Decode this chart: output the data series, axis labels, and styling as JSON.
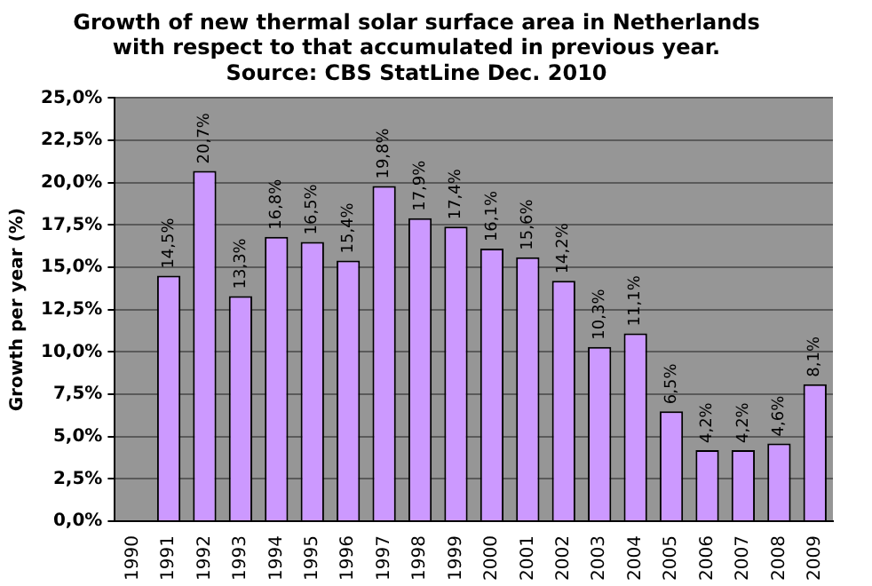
{
  "chart_data": {
    "type": "bar",
    "title": [
      "Growth of new thermal solar surface area in Netherlands",
      "with respect to that accumulated in previous year.",
      "Source: CBS StatLine Dec. 2010"
    ],
    "ylabel": "Growth per year (%)",
    "categories": [
      "1990",
      "1991",
      "1992",
      "1993",
      "1994",
      "1995",
      "1996",
      "1997",
      "1998",
      "1999",
      "2000",
      "2001",
      "2002",
      "2003",
      "2004",
      "2005",
      "2006",
      "2007",
      "2008",
      "2009"
    ],
    "values": [
      null,
      14.5,
      20.7,
      13.3,
      16.8,
      16.5,
      15.4,
      19.8,
      17.9,
      17.4,
      16.1,
      15.6,
      14.2,
      10.3,
      11.1,
      6.5,
      4.2,
      4.2,
      4.6,
      8.1
    ],
    "value_labels": [
      null,
      "14,5%",
      "20,7%",
      "13,3%",
      "16,8%",
      "16,5%",
      "15,4%",
      "19,8%",
      "17,9%",
      "17,4%",
      "16,1%",
      "15,6%",
      "14,2%",
      "10,3%",
      "11,1%",
      "6,5%",
      "4,2%",
      "4,2%",
      "4,6%",
      "8,1%"
    ],
    "color": "#cc99ff",
    "ylim": [
      0,
      25
    ],
    "yticks": [
      {
        "value": 0,
        "label": "0,0%"
      },
      {
        "value": 2.5,
        "label": "2,5%"
      },
      {
        "value": 5,
        "label": "5,0%"
      },
      {
        "value": 7.5,
        "label": "7,5%"
      },
      {
        "value": 10,
        "label": "10,0%"
      },
      {
        "value": 12.5,
        "label": "12,5%"
      },
      {
        "value": 15,
        "label": "15,0%"
      },
      {
        "value": 17.5,
        "label": "17,5%"
      },
      {
        "value": 20,
        "label": "20,0%"
      },
      {
        "value": 22.5,
        "label": "22,5%"
      },
      {
        "value": 25,
        "label": "25,0%"
      }
    ],
    "grid": "y",
    "legend": false
  }
}
